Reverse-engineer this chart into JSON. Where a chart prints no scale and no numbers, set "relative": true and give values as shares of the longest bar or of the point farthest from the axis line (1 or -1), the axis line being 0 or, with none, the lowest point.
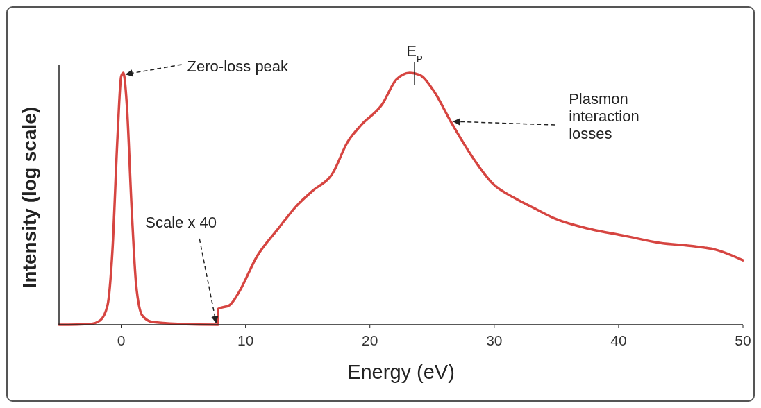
{
  "chart_data": {
    "type": "line",
    "relative": true,
    "xlabel": "Energy (eV)",
    "ylabel": "Intensity (log scale)",
    "xlim": [
      -5,
      50
    ],
    "xticks": [
      0,
      10,
      20,
      30,
      40,
      50
    ],
    "grid": false,
    "marker": "none",
    "line_style": "solid",
    "series": [
      {
        "color": "#d64541",
        "x": [
          -5,
          -2.5,
          -1.7,
          -1.1,
          -0.7,
          -0.3,
          0,
          0.17,
          0.45,
          0.84,
          1.2,
          1.7,
          2.5,
          4.7,
          7.8,
          7.8,
          8.7,
          9.5,
          10.9,
          12.6,
          14.2,
          15.4,
          17,
          18.2,
          19.3,
          21,
          22.1,
          23.2,
          24,
          25.1,
          26.5,
          28.2,
          29.9,
          31.6,
          33.2,
          34.9,
          37.7,
          40.5,
          43.3,
          46.1,
          47.8,
          50
        ],
        "values": [
          0,
          0.003,
          0.017,
          0.077,
          0.298,
          0.741,
          0.986,
          1,
          0.876,
          0.463,
          0.16,
          0.036,
          0.011,
          0.003,
          0,
          0.063,
          0.077,
          0.132,
          0.27,
          0.38,
          0.477,
          0.532,
          0.601,
          0.725,
          0.793,
          0.876,
          0.972,
          1,
          0.992,
          0.931,
          0.807,
          0.669,
          0.559,
          0.504,
          0.463,
          0.421,
          0.38,
          0.353,
          0.325,
          0.311,
          0.298,
          0.256
        ]
      }
    ],
    "annotations": [
      {
        "text": "Zero-loss peak",
        "x": 0.17,
        "y": 1
      },
      {
        "text": "E$_{P}$",
        "x": 23.2,
        "y": 1
      },
      {
        "text": "Plasmon interaction losses",
        "x": 26.5,
        "y": 0.807
      },
      {
        "text": "Scale x 40",
        "x": 7.8,
        "y": 0
      }
    ]
  }
}
